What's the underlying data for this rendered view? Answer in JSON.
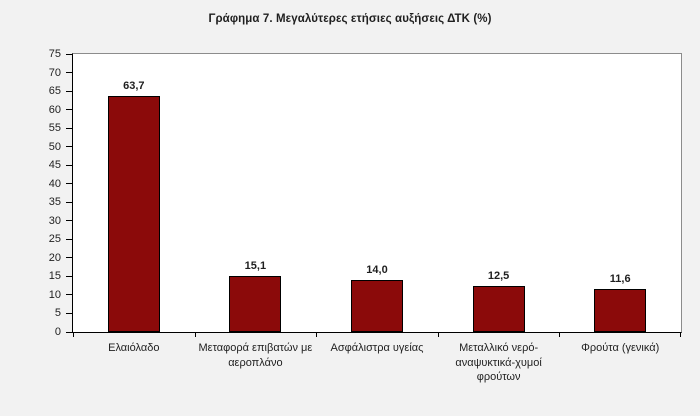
{
  "title": "Γράφημα 7. Μεγαλύτερες ετήσιες αυξήσεις ΔΤΚ (%)",
  "colors": {
    "background": "#F2F2F2",
    "plot_background": "#FFFFFF",
    "axis_line": "#000000",
    "plot_border": "#8C8C8C",
    "tick": "#000000",
    "text": "#1F1F1F",
    "bar_fill": "#8B0A0A",
    "bar_border": "#000000"
  },
  "chart_data": {
    "type": "bar",
    "title": "Γράφημα 7. Μεγαλύτερες ετήσιες αυξήσεις ΔΤΚ (%)",
    "categories": [
      "Ελαιόλαδο",
      "Μεταφορά επιβατών με αεροπλάνο",
      "Ασφάλιστρα υγείας",
      "Μεταλλικό νερό-αναψυκτικά-χυμοί φρούτων",
      "Φρούτα (γενικά)"
    ],
    "values": [
      63.7,
      15.1,
      14.0,
      12.5,
      11.6
    ],
    "value_labels": [
      "63,7",
      "15,1",
      "14,0",
      "12,5",
      "11,6"
    ],
    "xlabel": "",
    "ylabel": "",
    "ylim": [
      0,
      75
    ],
    "ytick_step": 5,
    "ytick_labels": [
      "0",
      "5",
      "10",
      "15",
      "20",
      "25",
      "30",
      "35",
      "40",
      "45",
      "50",
      "55",
      "60",
      "65",
      "70",
      "75"
    ],
    "grid": false,
    "legend": false,
    "decimal_separator": ","
  }
}
